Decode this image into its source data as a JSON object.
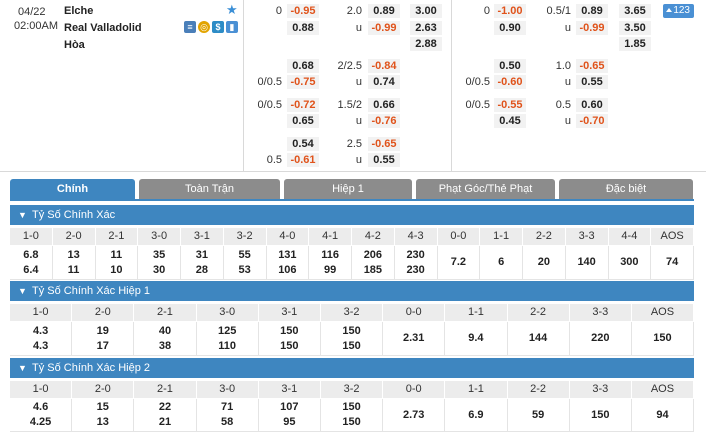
{
  "match": {
    "date": "04/22",
    "time": "02:00AM",
    "home": "Elche",
    "away": "Real Valladolid",
    "draw": "Hòa",
    "badge": "123",
    "icons": [
      "stats-icon",
      "coin-icon",
      "dollar-icon",
      "chart-icon"
    ]
  },
  "left_odds": {
    "row1": {
      "hcap": "0",
      "h1": "-0.95",
      "h2": "0.88",
      "line": "2.0",
      "o1": "0.89",
      "o2": "-0.99",
      "x1": "3.00",
      "x2": "2.63",
      "x3": "2.88"
    },
    "row2": {
      "hcap": "",
      "h1": "0.68",
      "h2": "-0.75",
      "hcap2": "0/0.5",
      "line": "2/2.5",
      "o1": "-0.84",
      "o2": "0.74"
    },
    "row3": {
      "hcap": "0/0.5",
      "h1": "-0.72",
      "h2": "0.65",
      "line": "1.5/2",
      "o1": "0.66",
      "o2": "-0.76"
    },
    "row4": {
      "hcap": "0.5",
      "h1": "0.54",
      "h2": "-0.61",
      "line": "2.5",
      "o1": "-0.65",
      "o2": "0.55"
    },
    "u_label": "u"
  },
  "right_odds": {
    "row1": {
      "hcap": "0",
      "h1": "-1.00",
      "h2": "0.90",
      "line": "0.5/1",
      "o1": "0.89",
      "o2": "-0.99",
      "x1": "3.65",
      "x2": "3.50",
      "x3": "1.85"
    },
    "row2": {
      "h1": "0.50",
      "h2": "-0.60",
      "hcap": "0/0.5",
      "line": "1.0",
      "o1": "-0.65",
      "o2": "0.55"
    },
    "row3": {
      "hcap": "0/0.5",
      "h1": "-0.55",
      "h2": "0.45",
      "line": "0.5",
      "o1": "0.60",
      "o2": "-0.70"
    },
    "u_label": "u"
  },
  "tabs": [
    "Chính",
    "Toàn Trận",
    "Hiệp 1",
    "Phạt Góc/Thẻ Phạt",
    "Đặc biệt"
  ],
  "sections": [
    {
      "title": "Tỷ Số Chính Xác",
      "headers": [
        "1-0",
        "2-0",
        "2-1",
        "3-0",
        "3-1",
        "3-2",
        "4-0",
        "4-1",
        "4-2",
        "4-3",
        "0-0",
        "1-1",
        "2-2",
        "3-3",
        "4-4",
        "AOS"
      ],
      "cells": [
        [
          "6.8",
          "6.4"
        ],
        [
          "13",
          "11"
        ],
        [
          "11",
          "10"
        ],
        [
          "35",
          "30"
        ],
        [
          "31",
          "28"
        ],
        [
          "55",
          "53"
        ],
        [
          "131",
          "106"
        ],
        [
          "116",
          "99"
        ],
        [
          "206",
          "185"
        ],
        [
          "230",
          "230"
        ],
        [
          "7.2"
        ],
        [
          "6"
        ],
        [
          "20"
        ],
        [
          "140"
        ],
        [
          "300"
        ],
        [
          "74"
        ]
      ]
    },
    {
      "title": "Tỷ Số Chính Xác Hiệp 1",
      "headers": [
        "1-0",
        "2-0",
        "2-1",
        "3-0",
        "3-1",
        "3-2",
        "0-0",
        "1-1",
        "2-2",
        "3-3",
        "AOS"
      ],
      "cells": [
        [
          "4.3",
          "4.3"
        ],
        [
          "19",
          "17"
        ],
        [
          "40",
          "38"
        ],
        [
          "125",
          "110"
        ],
        [
          "150",
          "150"
        ],
        [
          "150",
          "150"
        ],
        [
          "2.31"
        ],
        [
          "9.4"
        ],
        [
          "144"
        ],
        [
          "220"
        ],
        [
          "150"
        ]
      ]
    },
    {
      "title": "Tỷ Số Chính Xác Hiệp 2",
      "headers": [
        "1-0",
        "2-0",
        "2-1",
        "3-0",
        "3-1",
        "3-2",
        "0-0",
        "1-1",
        "2-2",
        "3-3",
        "AOS"
      ],
      "cells": [
        [
          "4.6",
          "4.25"
        ],
        [
          "15",
          "13"
        ],
        [
          "22",
          "21"
        ],
        [
          "71",
          "58"
        ],
        [
          "107",
          "95"
        ],
        [
          "150",
          "150"
        ],
        [
          "2.73"
        ],
        [
          "6.9"
        ],
        [
          "59"
        ],
        [
          "150"
        ],
        [
          "94"
        ]
      ]
    }
  ]
}
